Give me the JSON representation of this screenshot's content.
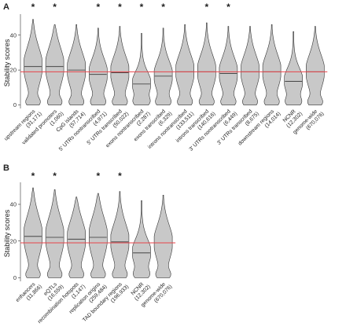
{
  "colors": {
    "violin_fill": "#c8c8c8",
    "violin_stroke": "#333333",
    "reference_line": "#e8434a"
  },
  "chart_data": [
    {
      "type": "violin",
      "panel_label": "A",
      "ylabel": "Stability scores",
      "ylim": [
        -2,
        52
      ],
      "yticks": [
        0,
        20,
        40
      ],
      "reference_line": 19,
      "grid": false,
      "categories": [
        {
          "name": "upstream regions",
          "count": "(31,171)",
          "median": 22,
          "significant": true,
          "max": 49
        },
        {
          "name": "validated promoters",
          "count": "(1,060)",
          "median": 22,
          "significant": true,
          "max": 46
        },
        {
          "name": "CpG islands",
          "count": "(57,714)",
          "median": 20,
          "significant": false,
          "max": 46
        },
        {
          "name": "5' UTRs nontranscribed",
          "count": "(4,971)",
          "median": 17.5,
          "significant": true,
          "max": 44
        },
        {
          "name": "5' UTRs transcribed",
          "count": "(50,022)",
          "median": 18.5,
          "significant": true,
          "max": 45
        },
        {
          "name": "exons nontranscribed",
          "count": "(2,287)",
          "median": 12,
          "significant": true,
          "max": 41
        },
        {
          "name": "exons transcribed",
          "count": "(6,329)",
          "median": 16.5,
          "significant": true,
          "max": 44
        },
        {
          "name": "introns nontranscribed",
          "count": "(133,511)",
          "median": 19,
          "significant": false,
          "max": 46
        },
        {
          "name": "introns transcribed",
          "count": "(140,616)",
          "median": 19,
          "significant": true,
          "max": 47
        },
        {
          "name": "3' UTRs nontranscribed",
          "count": "(6,449)",
          "median": 18,
          "significant": true,
          "max": 45
        },
        {
          "name": "3' UTRs transcribed",
          "count": "(8,675)",
          "median": 19,
          "significant": false,
          "max": 45
        },
        {
          "name": "downstream regions",
          "count": "(14,014)",
          "median": 19,
          "significant": false,
          "max": 46
        },
        {
          "name": "NCNR",
          "count": "(12,302)",
          "median": 13.5,
          "significant": false,
          "max": 42
        },
        {
          "name": "genome-wide",
          "count": "(670,076)",
          "median": 19,
          "significant": false,
          "max": 45
        }
      ]
    },
    {
      "type": "violin",
      "panel_label": "B",
      "ylabel": "Stability scores",
      "ylim": [
        -2,
        52
      ],
      "yticks": [
        0,
        20,
        40
      ],
      "reference_line": 19,
      "grid": false,
      "categories": [
        {
          "name": "enhancers",
          "count": "(11,866)",
          "median": 22.5,
          "significant": true,
          "max": 49
        },
        {
          "name": "eQTLs",
          "count": "(16,559)",
          "median": 22,
          "significant": true,
          "max": 48
        },
        {
          "name": "recombination hotspots",
          "count": "(1,147)",
          "median": 21,
          "significant": false,
          "max": 44
        },
        {
          "name": "replication origins",
          "count": "(259,484)",
          "median": 22,
          "significant": true,
          "max": 46
        },
        {
          "name": "TAD boundary regions",
          "count": "(196,933)",
          "median": 19.5,
          "significant": true,
          "max": 47
        },
        {
          "name": "NCNR",
          "count": "(12,302)",
          "median": 13.5,
          "significant": false,
          "max": 42
        },
        {
          "name": "genome-wide",
          "count": "(670,076)",
          "median": 19,
          "significant": false,
          "max": 45
        }
      ]
    }
  ]
}
